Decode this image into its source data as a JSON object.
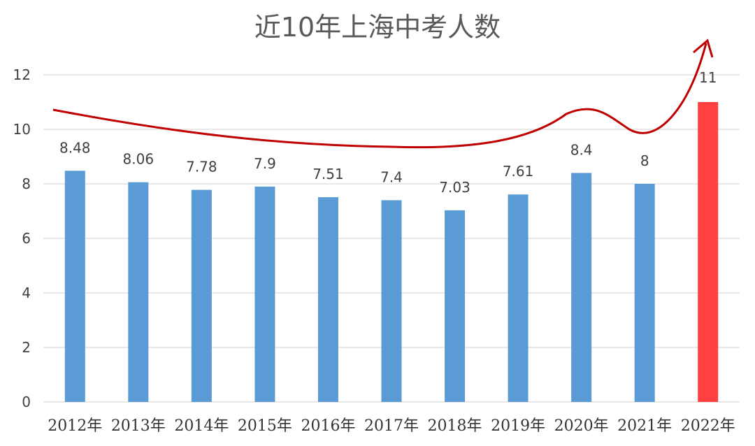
{
  "chart_data": {
    "type": "bar",
    "title": "近10年上海中考人数",
    "categories": [
      "2012年",
      "2013年",
      "2014年",
      "2015年",
      "2016年",
      "2017年",
      "2018年",
      "2019年",
      "2020年",
      "2021年",
      "2022年"
    ],
    "values": [
      8.48,
      8.06,
      7.78,
      7.9,
      7.51,
      7.4,
      7.03,
      7.61,
      8.4,
      8,
      11
    ],
    "data_labels": [
      "8.48",
      "8.06",
      "7.78",
      "7.9",
      "7.51",
      "7.4",
      "7.03",
      "7.61",
      "8.4",
      "8",
      "11"
    ],
    "yticks": [
      "0",
      "2",
      "4",
      "6",
      "8",
      "10",
      "12"
    ],
    "ylim": [
      0,
      12
    ],
    "grid": true,
    "bar_color": "#5b9bd5",
    "highlight_color": "#ff4040",
    "highlight_index": 10,
    "trend_arrow_color": "#c00000"
  }
}
